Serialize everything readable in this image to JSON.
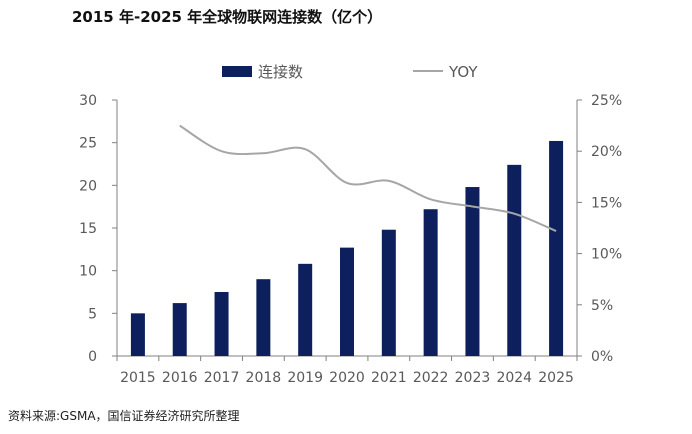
{
  "title": "2015 年-2025 年全球物联网连接数（亿个）",
  "source": "资料来源:GSMA，国信证券经济研究所整理",
  "chart_data": {
    "type": "bar+line",
    "categories": [
      "2015",
      "2016",
      "2017",
      "2018",
      "2019",
      "2020",
      "2021",
      "2022",
      "2023",
      "2024",
      "2025"
    ],
    "series": [
      {
        "name": "连接数",
        "type": "bar",
        "axis": "left",
        "color": "#0d1f5c",
        "values": [
          5.0,
          6.2,
          7.5,
          9.0,
          10.8,
          12.7,
          14.8,
          17.2,
          19.8,
          22.4,
          25.2
        ]
      },
      {
        "name": "YOY",
        "type": "line",
        "axis": "right",
        "color": "#a6a6a6",
        "values": [
          null,
          22.5,
          20.0,
          19.8,
          20.2,
          16.9,
          17.1,
          15.3,
          14.6,
          13.9,
          12.2
        ]
      }
    ],
    "y_left": {
      "min": 0,
      "max": 30,
      "ticks": [
        0,
        5,
        10,
        15,
        20,
        25,
        30
      ]
    },
    "y_right": {
      "min": 0,
      "max": 25,
      "ticks": [
        "0%",
        "5%",
        "10%",
        "15%",
        "20%",
        "25%"
      ]
    },
    "legend_position": "top-center",
    "grid": false
  }
}
